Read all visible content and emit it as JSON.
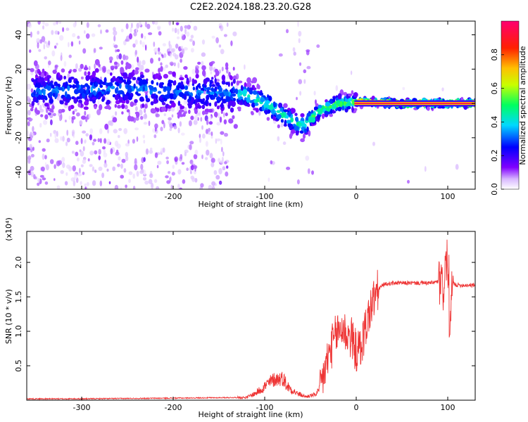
{
  "title": "C2E2.2024.188.23.20.G28",
  "chart_data": [
    {
      "type": "heatmap",
      "xlabel": "Height of straight line (km)",
      "ylabel": "Frequency (Hz)",
      "xlim": [
        -360,
        130
      ],
      "ylim": [
        -50,
        48
      ],
      "xticks": [
        -300,
        -200,
        -100,
        0,
        100
      ],
      "yticks": [
        -40,
        -20,
        0,
        20,
        40
      ],
      "colorbar": {
        "label": "Normalized spectral amplitude",
        "range": [
          0,
          1
        ],
        "ticks": [
          "0.0",
          "0.2",
          "0.4",
          "0.6",
          "0.8"
        ],
        "colors": [
          "#ffffff",
          "#7a00ff",
          "#0000ff",
          "#00e0ff",
          "#00ff40",
          "#ffff00",
          "#ff8000",
          "#ff0000",
          "#ff0080"
        ]
      },
      "ridge": {
        "x": [
          -350,
          -300,
          -250,
          -200,
          -150,
          -120,
          -100,
          -80,
          -60,
          -55,
          -40,
          -20,
          0,
          50,
          100,
          130
        ],
        "y": [
          7,
          8,
          9,
          7,
          6,
          5,
          0,
          -7,
          -13,
          -12,
          -4,
          0,
          1,
          0,
          0,
          0
        ]
      }
    },
    {
      "type": "line",
      "xlabel": "Height of straight line (km)",
      "ylabel": "SNR (10 * v/v)",
      "ymultiplier": "(x10⁴)",
      "xlim": [
        -360,
        130
      ],
      "ylim": [
        0,
        2.45
      ],
      "xticks": [
        -300,
        -200,
        -100,
        0,
        100
      ],
      "yticks": [
        "0.5",
        "1.0",
        "1.5",
        "2.0"
      ],
      "color": "#ee3333",
      "x": [
        -360,
        -300,
        -200,
        -120,
        -110,
        -100,
        -90,
        -80,
        -75,
        -65,
        -55,
        -45,
        -40,
        -35,
        -30,
        -25,
        -20,
        -15,
        -10,
        -5,
        0,
        5,
        10,
        15,
        20,
        25,
        30,
        40,
        60,
        80,
        90,
        95,
        98,
        100,
        102,
        105,
        110,
        130
      ],
      "y": [
        0.02,
        0.02,
        0.03,
        0.04,
        0.1,
        0.2,
        0.3,
        0.32,
        0.2,
        0.1,
        0.05,
        0.08,
        0.15,
        0.4,
        0.65,
        0.85,
        1.0,
        1.05,
        0.95,
        0.9,
        0.7,
        0.75,
        1.05,
        1.3,
        1.5,
        1.62,
        1.68,
        1.7,
        1.7,
        1.7,
        1.72,
        1.6,
        2.0,
        2.1,
        0.8,
        1.7,
        1.67,
        1.67
      ]
    }
  ]
}
